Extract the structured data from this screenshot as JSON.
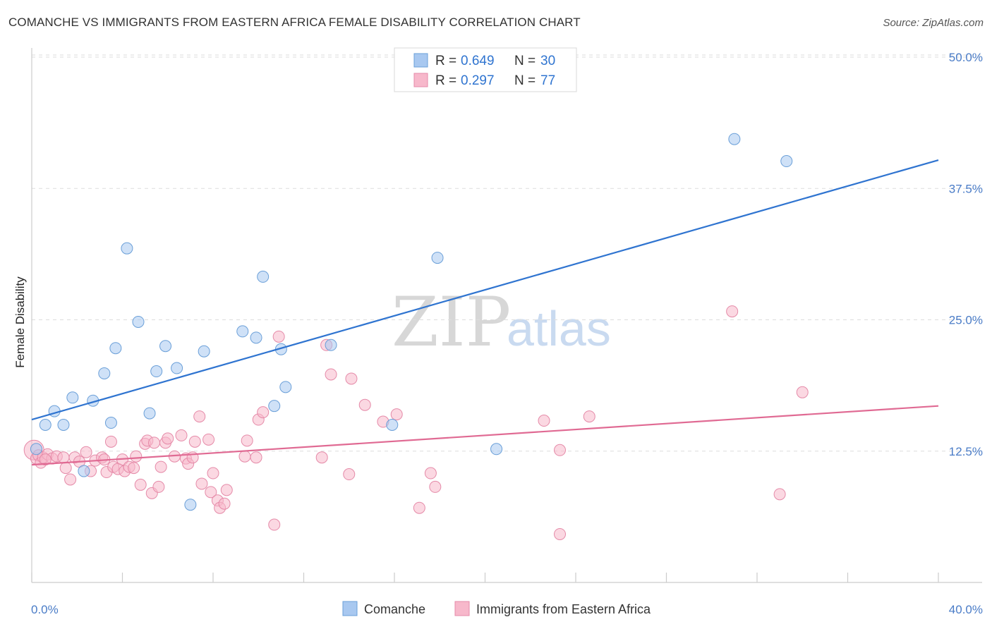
{
  "title": "COMANCHE VS IMMIGRANTS FROM EASTERN AFRICA FEMALE DISABILITY CORRELATION CHART",
  "source": "Source: ZipAtlas.com",
  "watermark": {
    "zip": "ZIP",
    "atlas": "atlas"
  },
  "colors": {
    "comanche_fill": "#a8c8f0",
    "comanche_stroke": "#6a9fd8",
    "comanche_line": "#2f74d0",
    "immigrants_fill": "#f7b8cb",
    "immigrants_stroke": "#e58aa8",
    "immigrants_line": "#e06a93",
    "tick": "#4a7cc7",
    "grid": "#dddddd"
  },
  "legend": {
    "r_label": "R =",
    "n_label": "N =",
    "rows": [
      {
        "series": "comanche",
        "r": "0.649",
        "n": "30"
      },
      {
        "series": "immigrants",
        "r": "0.297",
        "n": "77"
      }
    ]
  },
  "chart_data": {
    "type": "scatter",
    "title": "COMANCHE VS IMMIGRANTS FROM EASTERN AFRICA FEMALE DISABILITY CORRELATION CHART",
    "xlabel": "",
    "ylabel": "Female Disability",
    "xlim": [
      0,
      40
    ],
    "ylim": [
      0,
      50
    ],
    "x_tick_labels": [
      "0.0%",
      "40.0%"
    ],
    "y_ticks": [
      12.5,
      25.0,
      37.5,
      50.0
    ],
    "y_tick_labels": [
      "12.5%",
      "25.0%",
      "37.5%",
      "50.0%"
    ],
    "grid": true,
    "legend_position": "top-center",
    "series": [
      {
        "name": "Comanche",
        "key": "comanche",
        "r": 0.649,
        "n": 30,
        "trend": {
          "x": [
            0,
            40
          ],
          "y": [
            15.5,
            40.2
          ]
        },
        "points": [
          {
            "x": 0.2,
            "y": 12.7
          },
          {
            "x": 0.6,
            "y": 15.0
          },
          {
            "x": 1.0,
            "y": 16.3
          },
          {
            "x": 1.4,
            "y": 15.0
          },
          {
            "x": 1.8,
            "y": 17.6
          },
          {
            "x": 2.3,
            "y": 10.6
          },
          {
            "x": 2.7,
            "y": 17.3
          },
          {
            "x": 3.2,
            "y": 19.9
          },
          {
            "x": 3.5,
            "y": 15.2
          },
          {
            "x": 3.7,
            "y": 22.3
          },
          {
            "x": 4.2,
            "y": 31.8
          },
          {
            "x": 4.7,
            "y": 24.8
          },
          {
            "x": 5.2,
            "y": 16.1
          },
          {
            "x": 5.5,
            "y": 20.1
          },
          {
            "x": 5.9,
            "y": 22.5
          },
          {
            "x": 6.4,
            "y": 20.4
          },
          {
            "x": 7.0,
            "y": 7.4
          },
          {
            "x": 7.6,
            "y": 22.0
          },
          {
            "x": 9.3,
            "y": 23.9
          },
          {
            "x": 9.9,
            "y": 23.3
          },
          {
            "x": 10.2,
            "y": 29.1
          },
          {
            "x": 10.7,
            "y": 16.8
          },
          {
            "x": 11.0,
            "y": 22.2
          },
          {
            "x": 11.2,
            "y": 18.6
          },
          {
            "x": 13.2,
            "y": 22.6
          },
          {
            "x": 15.9,
            "y": 15.0
          },
          {
            "x": 17.9,
            "y": 30.9
          },
          {
            "x": 20.5,
            "y": 12.7
          },
          {
            "x": 31.0,
            "y": 42.2
          },
          {
            "x": 33.3,
            "y": 40.1
          }
        ]
      },
      {
        "name": "Immigrants from Eastern Africa",
        "key": "immigrants",
        "r": 0.297,
        "n": 77,
        "trend": {
          "x": [
            0,
            40
          ],
          "y": [
            11.2,
            16.8
          ]
        },
        "points": [
          {
            "x": 0.1,
            "y": 12.6
          },
          {
            "x": 0.2,
            "y": 11.8
          },
          {
            "x": 0.3,
            "y": 12.1
          },
          {
            "x": 0.4,
            "y": 11.4
          },
          {
            "x": 0.5,
            "y": 11.9
          },
          {
            "x": 0.7,
            "y": 12.2
          },
          {
            "x": 0.9,
            "y": 11.8
          },
          {
            "x": 1.1,
            "y": 12.0
          },
          {
            "x": 1.4,
            "y": 11.9
          },
          {
            "x": 1.5,
            "y": 10.9
          },
          {
            "x": 1.7,
            "y": 9.8
          },
          {
            "x": 1.9,
            "y": 11.9
          },
          {
            "x": 2.1,
            "y": 11.5
          },
          {
            "x": 2.4,
            "y": 12.4
          },
          {
            "x": 2.6,
            "y": 10.6
          },
          {
            "x": 2.8,
            "y": 11.6
          },
          {
            "x": 3.1,
            "y": 11.9
          },
          {
            "x": 3.2,
            "y": 11.7
          },
          {
            "x": 3.3,
            "y": 10.5
          },
          {
            "x": 3.5,
            "y": 13.4
          },
          {
            "x": 3.6,
            "y": 11.0
          },
          {
            "x": 3.8,
            "y": 10.8
          },
          {
            "x": 4.0,
            "y": 11.7
          },
          {
            "x": 4.1,
            "y": 10.6
          },
          {
            "x": 4.3,
            "y": 11.0
          },
          {
            "x": 4.5,
            "y": 10.9
          },
          {
            "x": 4.6,
            "y": 12.0
          },
          {
            "x": 4.8,
            "y": 9.3
          },
          {
            "x": 5.0,
            "y": 13.2
          },
          {
            "x": 5.1,
            "y": 13.5
          },
          {
            "x": 5.3,
            "y": 8.5
          },
          {
            "x": 5.4,
            "y": 13.3
          },
          {
            "x": 5.6,
            "y": 9.1
          },
          {
            "x": 5.7,
            "y": 11.0
          },
          {
            "x": 5.9,
            "y": 13.3
          },
          {
            "x": 6.0,
            "y": 13.7
          },
          {
            "x": 6.3,
            "y": 12.0
          },
          {
            "x": 6.6,
            "y": 14.0
          },
          {
            "x": 6.8,
            "y": 11.8
          },
          {
            "x": 6.9,
            "y": 11.3
          },
          {
            "x": 7.1,
            "y": 11.9
          },
          {
            "x": 7.2,
            "y": 13.4
          },
          {
            "x": 7.4,
            "y": 15.8
          },
          {
            "x": 7.5,
            "y": 9.4
          },
          {
            "x": 7.8,
            "y": 13.6
          },
          {
            "x": 7.9,
            "y": 8.6
          },
          {
            "x": 8.0,
            "y": 10.4
          },
          {
            "x": 8.2,
            "y": 7.8
          },
          {
            "x": 8.3,
            "y": 7.1
          },
          {
            "x": 8.5,
            "y": 7.5
          },
          {
            "x": 8.6,
            "y": 8.8
          },
          {
            "x": 9.4,
            "y": 12.0
          },
          {
            "x": 9.5,
            "y": 13.5
          },
          {
            "x": 9.9,
            "y": 11.9
          },
          {
            "x": 10.0,
            "y": 15.5
          },
          {
            "x": 10.2,
            "y": 16.2
          },
          {
            "x": 10.9,
            "y": 23.4
          },
          {
            "x": 10.7,
            "y": 5.5
          },
          {
            "x": 12.8,
            "y": 11.9
          },
          {
            "x": 13.0,
            "y": 22.6
          },
          {
            "x": 13.2,
            "y": 19.8
          },
          {
            "x": 14.0,
            "y": 10.3
          },
          {
            "x": 14.1,
            "y": 19.4
          },
          {
            "x": 14.7,
            "y": 16.9
          },
          {
            "x": 15.5,
            "y": 15.3
          },
          {
            "x": 16.1,
            "y": 16.0
          },
          {
            "x": 17.1,
            "y": 7.1
          },
          {
            "x": 17.6,
            "y": 10.4
          },
          {
            "x": 17.8,
            "y": 9.1
          },
          {
            "x": 22.6,
            "y": 15.4
          },
          {
            "x": 23.3,
            "y": 12.6
          },
          {
            "x": 23.3,
            "y": 4.6
          },
          {
            "x": 24.6,
            "y": 15.8
          },
          {
            "x": 30.9,
            "y": 25.8
          },
          {
            "x": 33.0,
            "y": 8.4
          },
          {
            "x": 34.0,
            "y": 18.1
          },
          {
            "x": 0.6,
            "y": 11.7
          }
        ]
      }
    ]
  }
}
